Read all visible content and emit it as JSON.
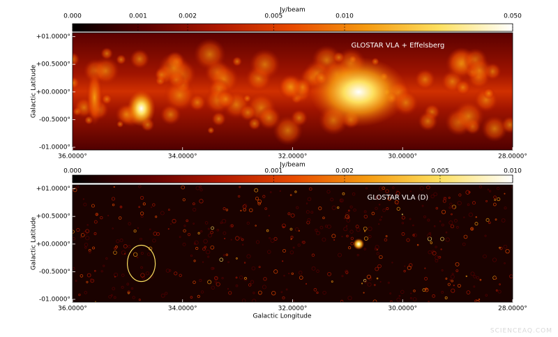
{
  "chart_data": [
    {
      "type": "image",
      "title": "GLOSTAR VLA + Effelsberg",
      "colorbar_label": "Jy/beam",
      "colorbar_scale": "asinh",
      "colormap": [
        "#000000",
        "#5a0000",
        "#b01800",
        "#e84a00",
        "#f59a10",
        "#fde060",
        "#ffffff"
      ],
      "colorbar_lim": [
        0,
        0.05
      ],
      "colorbar_ticks": [
        {
          "value": 0,
          "label": "0.000"
        },
        {
          "value": 0.001,
          "label": "0.001"
        },
        {
          "value": 0.002,
          "label": "0.002"
        },
        {
          "value": 0.005,
          "label": "0.005"
        },
        {
          "value": 0.01,
          "label": "0.010"
        },
        {
          "value": 0.05,
          "label": "0.050"
        }
      ],
      "xlim": [
        36,
        28
      ],
      "xticks": [
        {
          "value": 36,
          "label": "36.0000°"
        },
        {
          "value": 34,
          "label": "34.0000°"
        },
        {
          "value": 32,
          "label": "32.0000°"
        },
        {
          "value": 30,
          "label": "30.0000°"
        },
        {
          "value": 28,
          "label": "28.0000°"
        }
      ],
      "ylim": [
        -1.05,
        1.07
      ],
      "yticks": [
        {
          "value": 1,
          "label": "+01.0000°"
        },
        {
          "value": 0.5,
          "label": "+00.5000°"
        },
        {
          "value": 0,
          "label": "+00.0000°"
        },
        {
          "value": -0.5,
          "label": "-00.5000°"
        },
        {
          "value": -1,
          "label": "-01.0000°"
        }
      ],
      "ylabel": "Galactic Latitude"
    },
    {
      "type": "image",
      "title": "GLOSTAR VLA (D)",
      "colorbar_label": "Jy/beam",
      "colorbar_scale": "asinh",
      "colormap": [
        "#000000",
        "#5a0000",
        "#b01800",
        "#e84a00",
        "#f59a10",
        "#fde060",
        "#ffffff"
      ],
      "colorbar_lim": [
        0,
        0.01
      ],
      "colorbar_ticks": [
        {
          "value": 0,
          "label": "0.000"
        },
        {
          "value": 0.001,
          "label": "0.001"
        },
        {
          "value": 0.002,
          "label": "0.002"
        },
        {
          "value": 0.005,
          "label": "0.005"
        },
        {
          "value": 0.01,
          "label": "0.010"
        }
      ],
      "xlim": [
        36,
        28
      ],
      "xticks": [
        {
          "value": 36,
          "label": "36.0000°"
        },
        {
          "value": 34,
          "label": "34.0000°"
        },
        {
          "value": 32,
          "label": "32.0000°"
        },
        {
          "value": 30,
          "label": "30.0000°"
        },
        {
          "value": 28,
          "label": "28.0000°"
        }
      ],
      "ylim": [
        -1.05,
        1.07
      ],
      "yticks": [
        {
          "value": 1,
          "label": "+01.0000°"
        },
        {
          "value": 0.5,
          "label": "+00.5000°"
        },
        {
          "value": 0,
          "label": "+00.0000°"
        },
        {
          "value": -0.5,
          "label": "-00.5000°"
        },
        {
          "value": -1,
          "label": "-01.0000°"
        }
      ],
      "ylabel": "Galactic Latitude",
      "xlabel": "Galactic Longitude"
    }
  ],
  "watermark": "SCIENCEAQ.COM"
}
